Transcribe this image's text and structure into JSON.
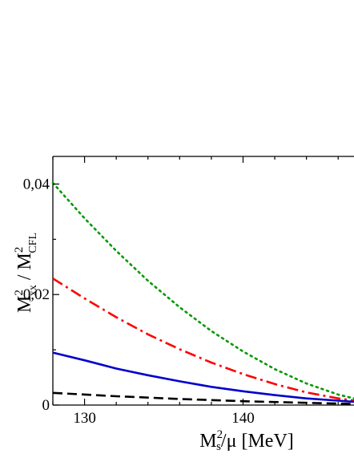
{
  "chart_data": {
    "type": "line",
    "title": "",
    "xlabel": {
      "base": "M",
      "sub": "s",
      "sup": "2",
      "rest": "/μ [MeV]"
    },
    "ylabel": {
      "num_base": "M",
      "num_sup": "2",
      "num_sub": "xx",
      "sep": " / ",
      "den_base": "M",
      "den_sup": "2",
      "den_sub": "CFL"
    },
    "xlim": [
      128,
      147
    ],
    "ylim": [
      0,
      0.045
    ],
    "xticks": [
      {
        "value": 130,
        "label": "130"
      },
      {
        "value": 140,
        "label": "140"
      }
    ],
    "yticks": [
      {
        "value": 0,
        "label": "0"
      },
      {
        "value": 0.02,
        "label": "0,02"
      },
      {
        "value": 0.04,
        "label": "0,04"
      }
    ],
    "series": [
      {
        "style": "dotted",
        "color": "#009900",
        "x": [
          128,
          130,
          132,
          134,
          136,
          138,
          140,
          142,
          144,
          146,
          147
        ],
        "y": [
          0.0402,
          0.0338,
          0.0279,
          0.0225,
          0.0177,
          0.0134,
          0.0097,
          0.0065,
          0.0039,
          0.0019,
          0.0012
        ]
      },
      {
        "style": "dashdot",
        "color": "#ff0000",
        "x": [
          128,
          130,
          132,
          134,
          136,
          138,
          140,
          142,
          144,
          146,
          147
        ],
        "y": [
          0.0229,
          0.0193,
          0.0159,
          0.0128,
          0.0101,
          0.0077,
          0.0056,
          0.0038,
          0.0023,
          0.0012,
          0.0008
        ]
      },
      {
        "style": "solid",
        "color": "#0000cc",
        "x": [
          128,
          130,
          132,
          134,
          136,
          138,
          140,
          142,
          144,
          146,
          147
        ],
        "y": [
          0.0095,
          0.0081,
          0.0066,
          0.0054,
          0.0043,
          0.0033,
          0.0025,
          0.0018,
          0.0012,
          0.0008,
          0.0006
        ]
      },
      {
        "style": "dashed",
        "color": "#000000",
        "x": [
          128,
          132,
          136,
          140,
          144,
          147
        ],
        "y": [
          0.0022,
          0.0016,
          0.0011,
          0.0007,
          0.0004,
          0.0002
        ]
      }
    ]
  }
}
